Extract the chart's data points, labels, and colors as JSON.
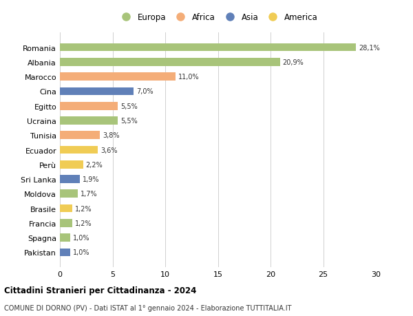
{
  "countries": [
    "Romania",
    "Albania",
    "Marocco",
    "Cina",
    "Egitto",
    "Ucraina",
    "Tunisia",
    "Ecuador",
    "Perù",
    "Sri Lanka",
    "Moldova",
    "Brasile",
    "Francia",
    "Spagna",
    "Pakistan"
  ],
  "values": [
    28.1,
    20.9,
    11.0,
    7.0,
    5.5,
    5.5,
    3.8,
    3.6,
    2.2,
    1.9,
    1.7,
    1.2,
    1.2,
    1.0,
    1.0
  ],
  "labels": [
    "28,1%",
    "20,9%",
    "11,0%",
    "7,0%",
    "5,5%",
    "5,5%",
    "3,8%",
    "3,6%",
    "2,2%",
    "1,9%",
    "1,7%",
    "1,2%",
    "1,2%",
    "1,0%",
    "1,0%"
  ],
  "continents": [
    "Europa",
    "Europa",
    "Africa",
    "Asia",
    "Africa",
    "Europa",
    "Africa",
    "America",
    "America",
    "Asia",
    "Europa",
    "America",
    "Europa",
    "Europa",
    "Asia"
  ],
  "continent_colors": {
    "Europa": "#a8c47a",
    "Africa": "#f4ad78",
    "Asia": "#6080b8",
    "America": "#f0cc55"
  },
  "legend_order": [
    "Europa",
    "Africa",
    "Asia",
    "America"
  ],
  "xlim": [
    0,
    30
  ],
  "xticks": [
    0,
    5,
    10,
    15,
    20,
    25,
    30
  ],
  "title": "Cittadini Stranieri per Cittadinanza - 2024",
  "subtitle": "COMUNE DI DORNO (PV) - Dati ISTAT al 1° gennaio 2024 - Elaborazione TUTTITALIA.IT",
  "bg_color": "#ffffff",
  "grid_color": "#d0d0d0",
  "bar_height": 0.55
}
